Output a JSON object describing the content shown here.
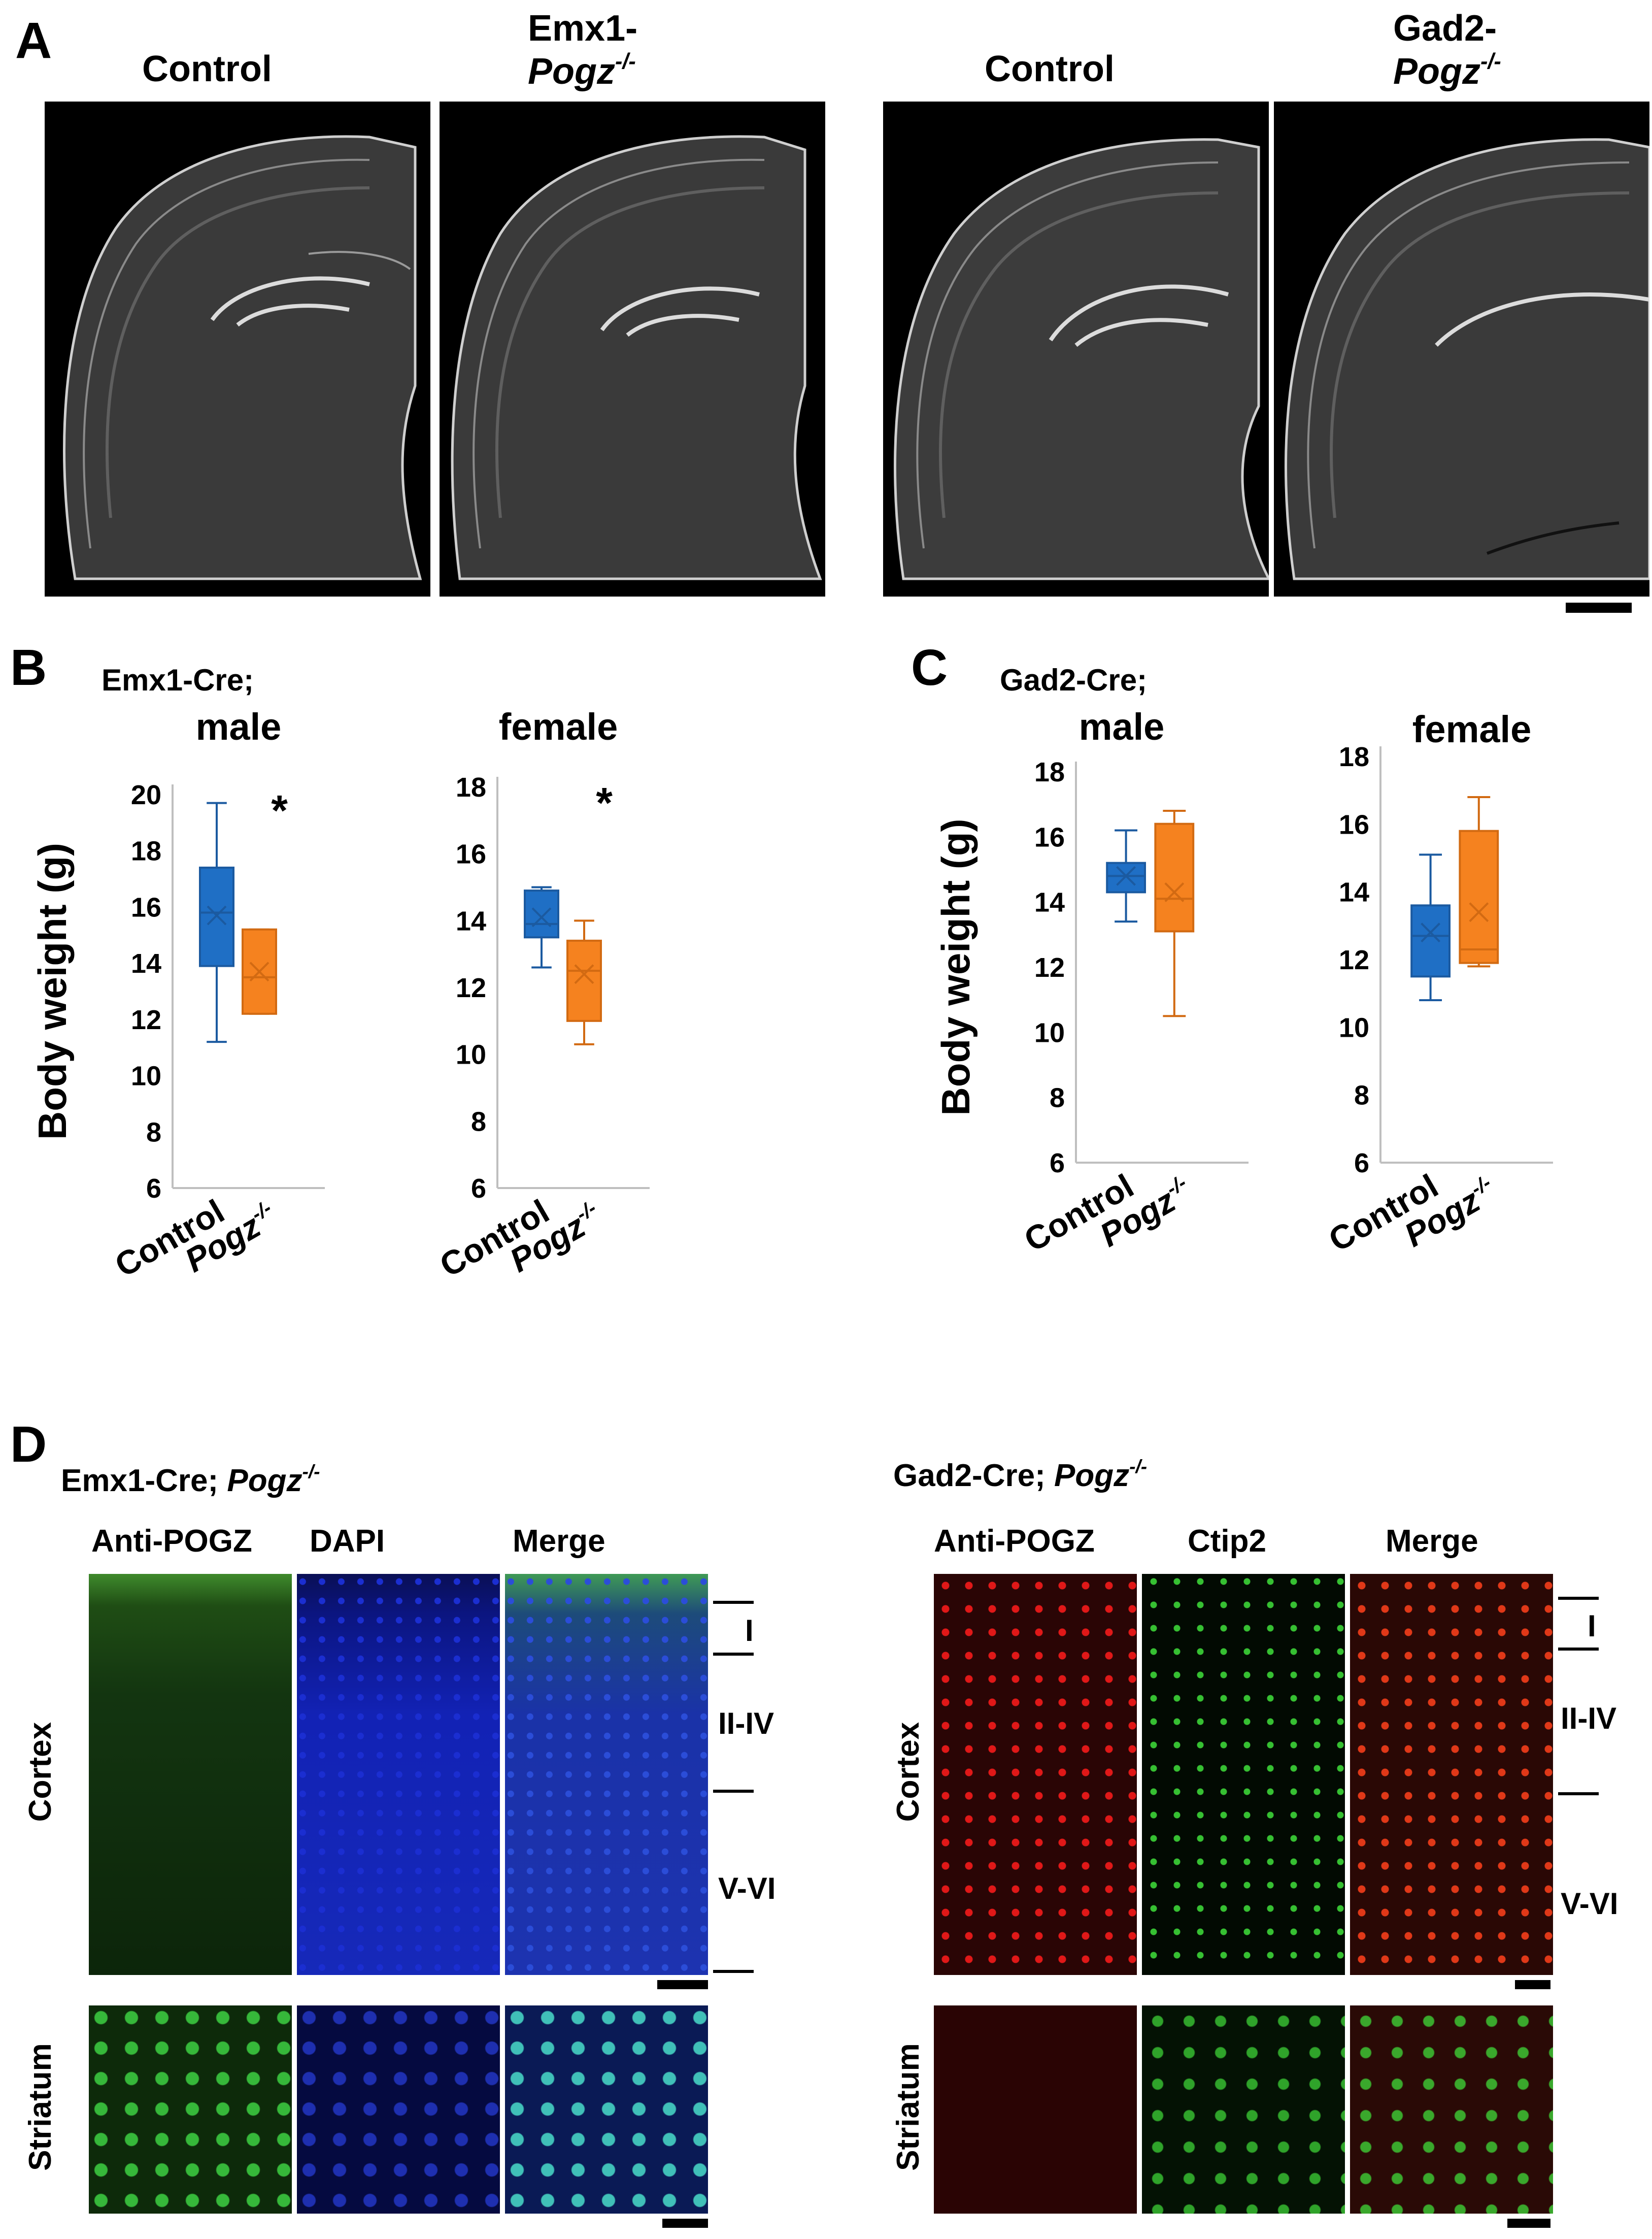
{
  "panels": {
    "A": "A",
    "B": "B",
    "C": "C",
    "D": "D"
  },
  "panelA": {
    "labels": [
      {
        "line1": "Control",
        "line2": ""
      },
      {
        "line1": "Emx1-",
        "line2": "Pogz",
        "sup": "-/-"
      },
      {
        "line1": "Control",
        "line2": ""
      },
      {
        "line1": "Gad2-",
        "line2": "Pogz",
        "sup": "-/-"
      }
    ]
  },
  "panelB": {
    "genotype": "Emx1-Cre;",
    "ylabel": "Body weight (g)",
    "xlabels": {
      "control": "Control",
      "ko": "Pogz",
      "ko_sup": "-/-"
    }
  },
  "panelC": {
    "genotype": "Gad2-Cre;",
    "ylabel": "Body weight (g)",
    "xlabels": {
      "control": "Control",
      "ko": "Pogz",
      "ko_sup": "-/-"
    }
  },
  "colors": {
    "control": "#1f6fc5",
    "ko": "#f5821f",
    "axis": "#bfbfbf"
  },
  "chart_data": [
    {
      "type": "box",
      "title": "male",
      "group": "Emx1-Cre;",
      "ylabel": "Body weight (g)",
      "ylim": [
        6,
        20
      ],
      "yticks": [
        6,
        8,
        10,
        12,
        14,
        16,
        18,
        20
      ],
      "categories": [
        "Control",
        "Pogz-/-"
      ],
      "boxes": [
        {
          "name": "Control",
          "min": 11.2,
          "q1": 13.9,
          "median": 15.8,
          "q3": 17.4,
          "max": 19.7,
          "mean": 15.7
        },
        {
          "name": "Pogz-/-",
          "min": 12.2,
          "q1": 12.2,
          "median": 13.5,
          "q3": 15.2,
          "max": 15.2,
          "mean": 13.7
        }
      ],
      "significance": "*"
    },
    {
      "type": "box",
      "title": "female",
      "group": "Emx1-Cre;",
      "ylabel": "",
      "ylim": [
        6,
        18
      ],
      "yticks": [
        6,
        8,
        10,
        12,
        14,
        16,
        18
      ],
      "categories": [
        "Control",
        "Pogz-/-"
      ],
      "boxes": [
        {
          "name": "Control",
          "min": 12.6,
          "q1": 13.5,
          "median": 13.9,
          "q3": 14.9,
          "max": 15.0,
          "mean": 14.1
        },
        {
          "name": "Pogz-/-",
          "min": 10.3,
          "q1": 11.0,
          "median": 12.5,
          "q3": 13.4,
          "max": 14.0,
          "mean": 12.4
        }
      ],
      "significance": "*"
    },
    {
      "type": "box",
      "title": "male",
      "group": "Gad2-Cre;",
      "ylabel": "Body weight (g)",
      "ylim": [
        6,
        18
      ],
      "yticks": [
        6,
        8,
        10,
        12,
        14,
        16,
        18
      ],
      "categories": [
        "Control",
        "Pogz-/-"
      ],
      "boxes": [
        {
          "name": "Control",
          "min": 13.4,
          "q1": 14.3,
          "median": 14.8,
          "q3": 15.2,
          "max": 16.2,
          "mean": 14.8
        },
        {
          "name": "Pogz-/-",
          "min": 10.5,
          "q1": 13.1,
          "median": 14.1,
          "q3": 16.4,
          "max": 16.8,
          "mean": 14.3
        }
      ],
      "significance": ""
    },
    {
      "type": "box",
      "title": "female",
      "group": "Gad2-Cre;",
      "ylabel": "",
      "ylim": [
        6,
        18
      ],
      "yticks": [
        6,
        8,
        10,
        12,
        14,
        16,
        18
      ],
      "categories": [
        "Control",
        "Pogz-/-"
      ],
      "boxes": [
        {
          "name": "Control",
          "min": 10.8,
          "q1": 11.5,
          "median": 12.7,
          "q3": 13.6,
          "max": 15.1,
          "mean": 12.8
        },
        {
          "name": "Pogz-/-",
          "min": 11.8,
          "q1": 11.9,
          "median": 12.3,
          "q3": 15.8,
          "max": 16.8,
          "mean": 13.4
        }
      ],
      "significance": ""
    }
  ],
  "panelD": {
    "left": {
      "title_a": "Emx1-Cre; ",
      "title_b": "Pogz",
      "title_sup": "-/-",
      "cols": [
        "Anti-POGZ",
        "DAPI",
        "Merge"
      ],
      "rows": [
        "Cortex",
        "Striatum"
      ],
      "layers": [
        "I",
        "II-IV",
        "V-VI"
      ]
    },
    "right": {
      "title_a": "Gad2-Cre; ",
      "title_b": "Pogz",
      "title_sup": "-/-",
      "cols": [
        "Anti-POGZ",
        "Ctip2",
        "Merge"
      ],
      "rows": [
        "Cortex",
        "Striatum"
      ],
      "layers": [
        "I",
        "II-IV",
        "V-VI"
      ]
    }
  }
}
